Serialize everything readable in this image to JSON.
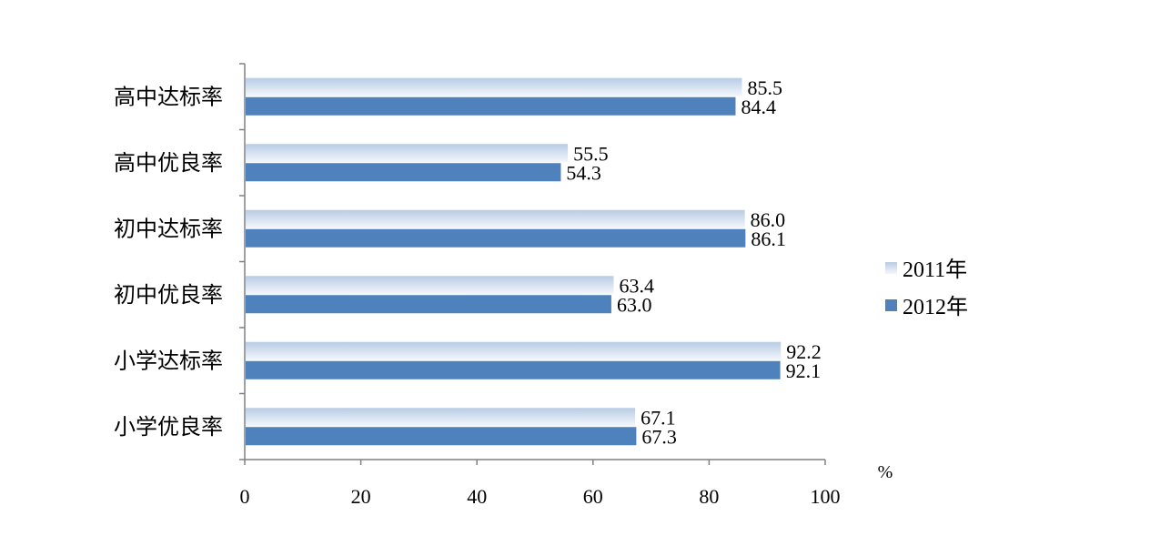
{
  "chart_data": {
    "type": "bar",
    "orientation": "horizontal",
    "categories": [
      "高中达标率",
      "高中优良率",
      "初中达标率",
      "初中优良率",
      "小学达标率",
      "小学优良率"
    ],
    "series": [
      {
        "name": "2011年",
        "values": [
          85.5,
          55.5,
          86.0,
          63.4,
          92.2,
          67.1
        ],
        "color": "#b8cce4",
        "gradient_to": "#f4f7fc"
      },
      {
        "name": "2012年",
        "values": [
          84.4,
          54.3,
          86.1,
          63.0,
          92.1,
          67.3
        ],
        "color": "#4f81bd"
      }
    ],
    "value_labels": [
      [
        "85.5",
        "55.5",
        "86.0",
        "63.4",
        "92.2",
        "67.1"
      ],
      [
        "84.4",
        "54.3",
        "86.1",
        "63.0",
        "92.1",
        "67.3"
      ]
    ],
    "xlim": [
      0,
      100
    ],
    "xticks": [
      0,
      20,
      40,
      60,
      80,
      100
    ],
    "x_unit_label": "%",
    "grid": false,
    "legend_position": "right"
  }
}
